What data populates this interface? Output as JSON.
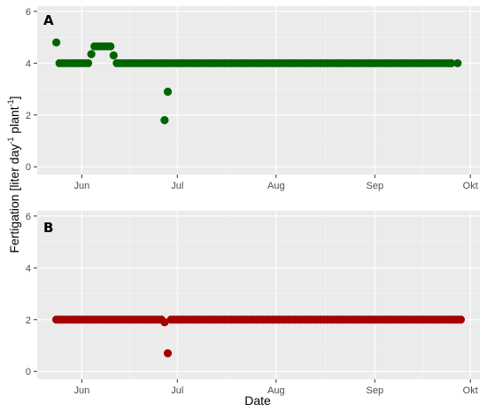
{
  "chart_data": {
    "type": "scatter",
    "xlabel": "Date",
    "ylabel_parts": {
      "a": "Fertigation [liter day",
      "b": "-1",
      "c": " plant",
      "d": "-1",
      "e": "]"
    },
    "ylim": [
      -0.3,
      6.2
    ],
    "yticks": [
      "0",
      "2",
      "4",
      "6"
    ],
    "xlim": [
      "2019-05-18",
      "2019-10-04"
    ],
    "xticks": [
      {
        "date": "2019-06-01",
        "label": "Jun"
      },
      {
        "date": "2019-07-01",
        "label": "Jul"
      },
      {
        "date": "2019-08-01",
        "label": "Aug"
      },
      {
        "date": "2019-09-01",
        "label": "Sep"
      },
      {
        "date": "2019-10-01",
        "label": "Okt"
      }
    ],
    "grid": true,
    "panels": [
      {
        "label": "A",
        "color": "#006400",
        "runs": [
          {
            "start": "2019-05-24",
            "end": "2019-05-24",
            "y": 4.8
          },
          {
            "start": "2019-05-25",
            "end": "2019-06-03",
            "y": 4.0
          },
          {
            "start": "2019-06-04",
            "end": "2019-06-04",
            "y": 4.35
          },
          {
            "start": "2019-06-05",
            "end": "2019-06-10",
            "y": 4.65
          },
          {
            "start": "2019-06-11",
            "end": "2019-06-11",
            "y": 4.3
          },
          {
            "start": "2019-06-12",
            "end": "2019-06-28",
            "y": 4.0
          },
          {
            "start": "2019-06-27",
            "end": "2019-06-27",
            "y": 1.8
          },
          {
            "start": "2019-06-28",
            "end": "2019-06-28",
            "y": 2.9
          },
          {
            "start": "2019-06-29",
            "end": "2019-09-25",
            "y": 4.0
          },
          {
            "start": "2019-09-27",
            "end": "2019-09-27",
            "y": 4.0
          }
        ]
      },
      {
        "label": "B",
        "color": "#a50000",
        "runs": [
          {
            "start": "2019-05-24",
            "end": "2019-06-26",
            "y": 2.0
          },
          {
            "start": "2019-06-27",
            "end": "2019-06-27",
            "y": 1.9
          },
          {
            "start": "2019-06-28",
            "end": "2019-06-28",
            "y": 0.7
          },
          {
            "start": "2019-06-29",
            "end": "2019-09-28",
            "y": 2.0
          }
        ]
      }
    ]
  }
}
